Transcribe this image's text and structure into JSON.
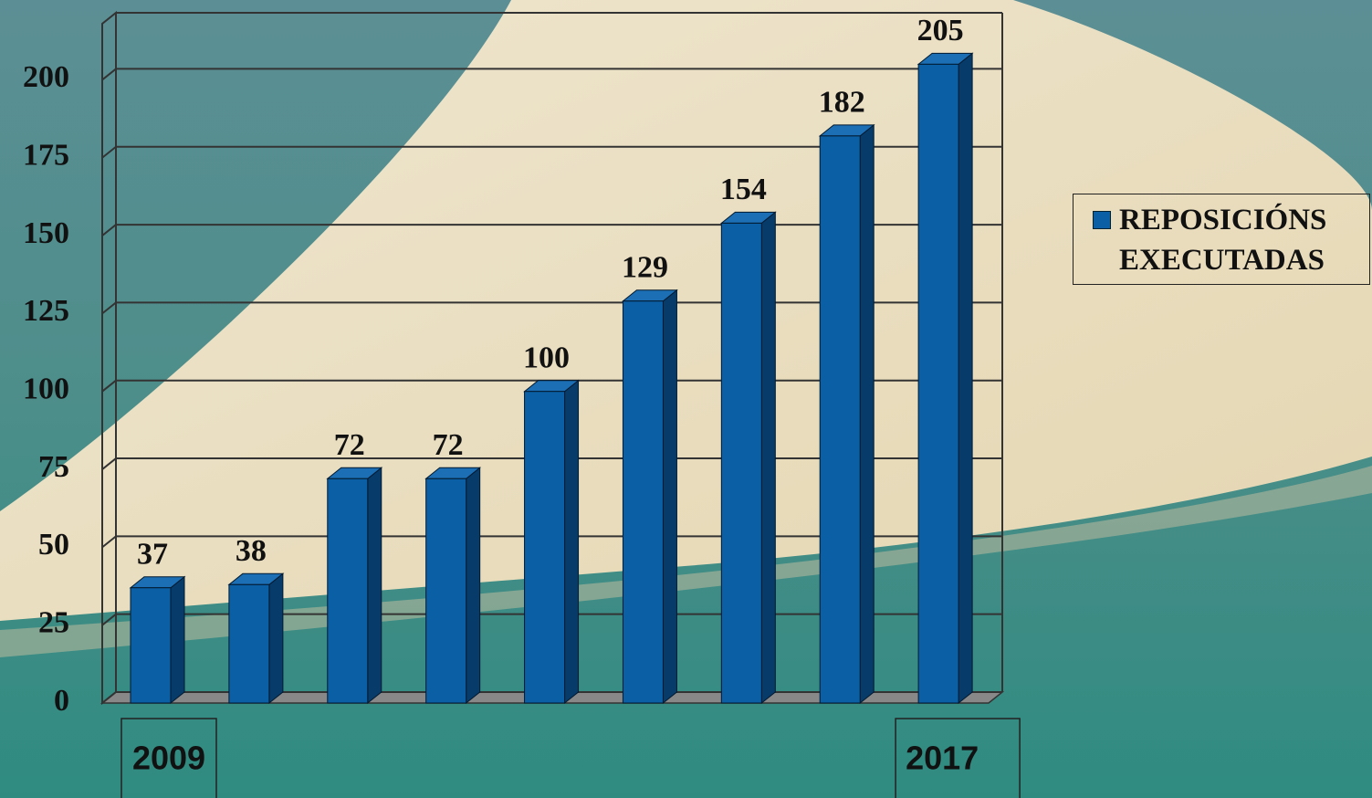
{
  "chart_data": {
    "type": "bar3d",
    "categories": [
      "2009",
      null,
      null,
      null,
      null,
      null,
      null,
      null,
      "2017"
    ],
    "series": [
      {
        "name": "REPOSICIÓNS EXECUTADAS",
        "color": "#0b5fa5",
        "values": [
          37,
          38,
          72,
          72,
          100,
          129,
          154,
          182,
          205
        ]
      }
    ],
    "ylim": [
      0,
      218
    ],
    "yticks": [
      0,
      25,
      50,
      75,
      100,
      125,
      150,
      175,
      200
    ],
    "grid": true
  }
}
